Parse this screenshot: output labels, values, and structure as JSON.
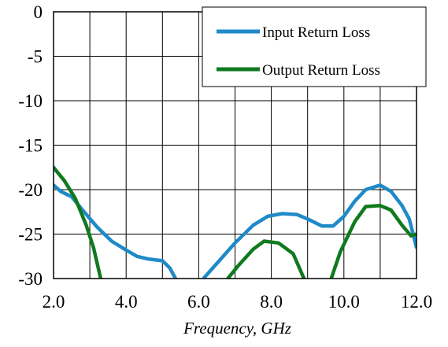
{
  "chart_data": {
    "type": "line",
    "xlabel": "Frequency, GHz",
    "ylabel": "",
    "xlim": [
      2.0,
      12.0
    ],
    "ylim": [
      -30,
      0
    ],
    "x_ticks": [
      "2.0",
      "4.0",
      "6.0",
      "8.0",
      "10.0",
      "12.0"
    ],
    "x_tick_values": [
      2,
      4,
      6,
      8,
      10,
      12
    ],
    "y_ticks": [
      "0",
      "-5",
      "-10",
      "-15",
      "-20",
      "-25",
      "-30"
    ],
    "y_tick_values": [
      0,
      -5,
      -10,
      -15,
      -20,
      -25,
      -30
    ],
    "x_grid": [
      2,
      3,
      4,
      5,
      6,
      7,
      8,
      9,
      10,
      11,
      12
    ],
    "y_grid": [
      0,
      -5,
      -10,
      -15,
      -20,
      -25,
      -30
    ],
    "grid": true,
    "legend_position": "top-right",
    "series": [
      {
        "name": "Input Return Loss",
        "color": "#1F8AC8",
        "segments": [
          [
            [
              2.0,
              -19.5
            ],
            [
              2.2,
              -20.2
            ],
            [
              2.5,
              -20.8
            ],
            [
              2.8,
              -22.3
            ],
            [
              3.2,
              -24.2
            ],
            [
              3.6,
              -25.8
            ],
            [
              4.0,
              -26.8
            ],
            [
              4.3,
              -27.5
            ],
            [
              4.6,
              -27.8
            ],
            [
              5.0,
              -28.0
            ],
            [
              5.2,
              -28.8
            ],
            [
              5.35,
              -29.9
            ]
          ],
          [
            [
              6.15,
              -29.9
            ],
            [
              6.5,
              -28.3
            ],
            [
              7.0,
              -26.0
            ],
            [
              7.5,
              -24.0
            ],
            [
              7.9,
              -23.0
            ],
            [
              8.3,
              -22.7
            ],
            [
              8.7,
              -22.8
            ],
            [
              9.0,
              -23.3
            ],
            [
              9.4,
              -24.1
            ],
            [
              9.7,
              -24.1
            ],
            [
              10.0,
              -23.0
            ],
            [
              10.3,
              -21.3
            ],
            [
              10.6,
              -20.0
            ],
            [
              11.0,
              -19.5
            ],
            [
              11.3,
              -20.2
            ],
            [
              11.6,
              -21.8
            ],
            [
              11.8,
              -23.3
            ],
            [
              12.0,
              -26.5
            ]
          ]
        ]
      },
      {
        "name": "Output Return Loss",
        "color": "#0F7A1E",
        "segments": [
          [
            [
              2.0,
              -17.5
            ],
            [
              2.3,
              -19.0
            ],
            [
              2.6,
              -21.0
            ],
            [
              2.9,
              -24.0
            ],
            [
              3.1,
              -26.5
            ],
            [
              3.3,
              -30.0
            ]
          ],
          [
            [
              6.8,
              -30.0
            ],
            [
              7.1,
              -28.5
            ],
            [
              7.5,
              -26.7
            ],
            [
              7.8,
              -25.8
            ],
            [
              8.2,
              -26.0
            ],
            [
              8.6,
              -27.2
            ],
            [
              8.9,
              -30.0
            ]
          ],
          [
            [
              9.65,
              -30.0
            ],
            [
              9.9,
              -27.0
            ],
            [
              10.3,
              -23.6
            ],
            [
              10.6,
              -21.9
            ],
            [
              11.0,
              -21.8
            ],
            [
              11.3,
              -22.3
            ],
            [
              11.6,
              -24.0
            ],
            [
              11.85,
              -25.2
            ],
            [
              12.0,
              -25.0
            ]
          ]
        ]
      }
    ]
  }
}
